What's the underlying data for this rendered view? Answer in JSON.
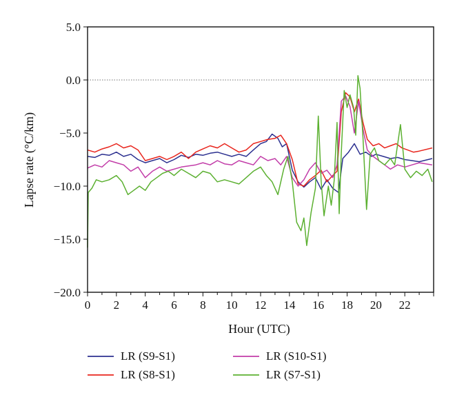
{
  "chart_data": {
    "type": "line",
    "xlabel": "Hour (UTC)",
    "ylabel": "Lapse rate (°C/km)",
    "xlim": [
      0,
      24
    ],
    "ylim": [
      -20,
      5
    ],
    "xticks": [
      0,
      2,
      4,
      6,
      8,
      10,
      12,
      14,
      16,
      18,
      20,
      22
    ],
    "yticks": [
      5,
      0,
      -5,
      -10,
      -15,
      -20
    ],
    "ytick_labels": [
      "5.0",
      "0.0",
      "−5.0",
      "−10.0",
      "−15.0",
      "−20.0"
    ],
    "zero_reference_line": true,
    "grid": false,
    "legend_position": "bottom",
    "series": [
      {
        "name": "LR (S9-S1)",
        "color": "#2b2f8f",
        "points": [
          [
            0,
            -7.2
          ],
          [
            0.5,
            -7.3
          ],
          [
            1,
            -7.0
          ],
          [
            1.5,
            -7.1
          ],
          [
            2,
            -6.8
          ],
          [
            2.5,
            -7.2
          ],
          [
            3,
            -7.0
          ],
          [
            3.5,
            -7.5
          ],
          [
            4,
            -7.8
          ],
          [
            4.5,
            -7.6
          ],
          [
            5,
            -7.4
          ],
          [
            5.5,
            -7.8
          ],
          [
            6,
            -7.5
          ],
          [
            6.5,
            -7.1
          ],
          [
            7,
            -7.3
          ],
          [
            7.5,
            -7.0
          ],
          [
            8,
            -7.1
          ],
          [
            8.5,
            -6.9
          ],
          [
            9,
            -6.8
          ],
          [
            9.5,
            -7.0
          ],
          [
            10,
            -7.2
          ],
          [
            10.5,
            -7.0
          ],
          [
            11,
            -7.2
          ],
          [
            11.5,
            -6.6
          ],
          [
            12,
            -6.0
          ],
          [
            12.4,
            -5.8
          ],
          [
            12.8,
            -5.1
          ],
          [
            13.2,
            -5.5
          ],
          [
            13.5,
            -6.3
          ],
          [
            13.8,
            -6.0
          ],
          [
            14.2,
            -8.5
          ],
          [
            14.6,
            -9.6
          ],
          [
            15,
            -10.1
          ],
          [
            15.4,
            -9.6
          ],
          [
            15.8,
            -9.2
          ],
          [
            16.2,
            -10.3
          ],
          [
            16.6,
            -9.4
          ],
          [
            17,
            -10.2
          ],
          [
            17.4,
            -10.6
          ],
          [
            17.7,
            -7.4
          ],
          [
            18.1,
            -6.8
          ],
          [
            18.5,
            -6.0
          ],
          [
            18.9,
            -7.0
          ],
          [
            19.3,
            -6.8
          ],
          [
            19.7,
            -7.2
          ],
          [
            20,
            -7.0
          ],
          [
            20.5,
            -7.2
          ],
          [
            21,
            -7.4
          ],
          [
            21.5,
            -7.3
          ],
          [
            22,
            -7.5
          ],
          [
            22.5,
            -7.6
          ],
          [
            23,
            -7.7
          ],
          [
            23.9,
            -7.4
          ]
        ]
      },
      {
        "name": "LR (S8-S1)",
        "color": "#e8241c",
        "points": [
          [
            0,
            -6.6
          ],
          [
            0.5,
            -6.8
          ],
          [
            1,
            -6.5
          ],
          [
            1.5,
            -6.3
          ],
          [
            2,
            -6.0
          ],
          [
            2.5,
            -6.4
          ],
          [
            3,
            -6.2
          ],
          [
            3.5,
            -6.6
          ],
          [
            4,
            -7.6
          ],
          [
            4.5,
            -7.4
          ],
          [
            5,
            -7.2
          ],
          [
            5.5,
            -7.5
          ],
          [
            6,
            -7.2
          ],
          [
            6.5,
            -6.8
          ],
          [
            7,
            -7.4
          ],
          [
            7.5,
            -6.8
          ],
          [
            8,
            -6.5
          ],
          [
            8.5,
            -6.2
          ],
          [
            9,
            -6.4
          ],
          [
            9.5,
            -6.0
          ],
          [
            10,
            -6.4
          ],
          [
            10.5,
            -6.8
          ],
          [
            11,
            -6.6
          ],
          [
            11.5,
            -6.0
          ],
          [
            12,
            -5.8
          ],
          [
            12.5,
            -5.6
          ],
          [
            13,
            -5.5
          ],
          [
            13.4,
            -5.2
          ],
          [
            13.8,
            -6.0
          ],
          [
            14.2,
            -7.5
          ],
          [
            14.6,
            -9.8
          ],
          [
            15,
            -10.0
          ],
          [
            15.4,
            -9.4
          ],
          [
            15.8,
            -9.0
          ],
          [
            16.2,
            -8.5
          ],
          [
            16.6,
            -9.6
          ],
          [
            17,
            -9.0
          ],
          [
            17.3,
            -8.6
          ],
          [
            17.6,
            -3.0
          ],
          [
            17.9,
            -1.2
          ],
          [
            18.2,
            -1.6
          ],
          [
            18.5,
            -3.0
          ],
          [
            18.8,
            -1.8
          ],
          [
            19.1,
            -4.0
          ],
          [
            19.4,
            -5.6
          ],
          [
            19.8,
            -6.2
          ],
          [
            20.2,
            -6.0
          ],
          [
            20.6,
            -6.4
          ],
          [
            21,
            -6.2
          ],
          [
            21.4,
            -6.0
          ],
          [
            21.8,
            -6.4
          ],
          [
            22.2,
            -6.6
          ],
          [
            22.6,
            -6.8
          ],
          [
            23,
            -6.7
          ],
          [
            23.9,
            -6.4
          ]
        ]
      },
      {
        "name": "LR (S10-S1)",
        "color": "#c23ca8",
        "points": [
          [
            0,
            -8.3
          ],
          [
            0.5,
            -8.0
          ],
          [
            1,
            -8.2
          ],
          [
            1.5,
            -7.6
          ],
          [
            2,
            -7.8
          ],
          [
            2.5,
            -8.0
          ],
          [
            3,
            -8.6
          ],
          [
            3.5,
            -8.2
          ],
          [
            4,
            -9.2
          ],
          [
            4.5,
            -8.6
          ],
          [
            5,
            -8.2
          ],
          [
            5.5,
            -8.6
          ],
          [
            6,
            -8.4
          ],
          [
            6.5,
            -8.2
          ],
          [
            7,
            -8.1
          ],
          [
            7.5,
            -8.0
          ],
          [
            8,
            -7.8
          ],
          [
            8.5,
            -8.0
          ],
          [
            9,
            -7.6
          ],
          [
            9.5,
            -7.9
          ],
          [
            10,
            -8.0
          ],
          [
            10.5,
            -7.6
          ],
          [
            11,
            -7.8
          ],
          [
            11.5,
            -8.0
          ],
          [
            12,
            -7.2
          ],
          [
            12.5,
            -7.6
          ],
          [
            13,
            -7.4
          ],
          [
            13.4,
            -8.0
          ],
          [
            13.8,
            -7.2
          ],
          [
            14.2,
            -9.2
          ],
          [
            14.6,
            -10.0
          ],
          [
            15,
            -9.4
          ],
          [
            15.4,
            -8.4
          ],
          [
            15.8,
            -7.8
          ],
          [
            16.2,
            -8.8
          ],
          [
            16.6,
            -8.5
          ],
          [
            17,
            -9.2
          ],
          [
            17.3,
            -8.0
          ],
          [
            17.6,
            -2.0
          ],
          [
            17.9,
            -1.5
          ],
          [
            18.2,
            -2.5
          ],
          [
            18.5,
            -5.0
          ],
          [
            18.8,
            -2.0
          ],
          [
            19.1,
            -4.6
          ],
          [
            19.4,
            -6.6
          ],
          [
            19.8,
            -7.2
          ],
          [
            20.2,
            -7.6
          ],
          [
            20.6,
            -8.0
          ],
          [
            21,
            -8.4
          ],
          [
            21.5,
            -8.0
          ],
          [
            22,
            -8.2
          ],
          [
            22.5,
            -8.0
          ],
          [
            23,
            -7.8
          ],
          [
            23.9,
            -8.0
          ]
        ]
      },
      {
        "name": "LR (S7-S1)",
        "color": "#5bb030",
        "points": [
          [
            0,
            -15.8
          ],
          [
            0.05,
            -10.6
          ],
          [
            0.3,
            -10.2
          ],
          [
            0.6,
            -9.4
          ],
          [
            1,
            -9.6
          ],
          [
            1.5,
            -9.4
          ],
          [
            2,
            -9.0
          ],
          [
            2.4,
            -9.6
          ],
          [
            2.8,
            -10.8
          ],
          [
            3.2,
            -10.4
          ],
          [
            3.6,
            -10.0
          ],
          [
            4,
            -10.4
          ],
          [
            4.4,
            -9.6
          ],
          [
            4.8,
            -9.2
          ],
          [
            5.2,
            -8.8
          ],
          [
            5.6,
            -8.6
          ],
          [
            6,
            -9.0
          ],
          [
            6.5,
            -8.4
          ],
          [
            7,
            -8.8
          ],
          [
            7.5,
            -9.2
          ],
          [
            8,
            -8.6
          ],
          [
            8.5,
            -8.8
          ],
          [
            9,
            -9.6
          ],
          [
            9.5,
            -9.4
          ],
          [
            10,
            -9.6
          ],
          [
            10.5,
            -9.8
          ],
          [
            11,
            -9.2
          ],
          [
            11.5,
            -8.6
          ],
          [
            12,
            -8.2
          ],
          [
            12.4,
            -9.0
          ],
          [
            12.8,
            -9.6
          ],
          [
            13.2,
            -10.8
          ],
          [
            13.6,
            -8.4
          ],
          [
            13.9,
            -7.2
          ],
          [
            14.2,
            -9.6
          ],
          [
            14.5,
            -13.4
          ],
          [
            14.8,
            -14.2
          ],
          [
            15,
            -13.0
          ],
          [
            15.2,
            -15.6
          ],
          [
            15.5,
            -12.5
          ],
          [
            15.8,
            -10.2
          ],
          [
            16.0,
            -3.4
          ],
          [
            16.2,
            -9.5
          ],
          [
            16.4,
            -12.8
          ],
          [
            16.7,
            -10.0
          ],
          [
            16.9,
            -11.8
          ],
          [
            17.1,
            -9.5
          ],
          [
            17.3,
            -4.0
          ],
          [
            17.45,
            -12.6
          ],
          [
            17.6,
            -6.8
          ],
          [
            17.8,
            -1.0
          ],
          [
            18.0,
            -2.6
          ],
          [
            18.2,
            -1.4
          ],
          [
            18.45,
            -2.6
          ],
          [
            18.6,
            -5.2
          ],
          [
            18.75,
            0.4
          ],
          [
            18.9,
            -0.8
          ],
          [
            19.1,
            -5.4
          ],
          [
            19.35,
            -12.2
          ],
          [
            19.6,
            -7.0
          ],
          [
            19.9,
            -6.4
          ],
          [
            20.2,
            -7.6
          ],
          [
            20.6,
            -8.0
          ],
          [
            21.0,
            -7.4
          ],
          [
            21.3,
            -8.0
          ],
          [
            21.7,
            -4.2
          ],
          [
            22.0,
            -8.4
          ],
          [
            22.4,
            -9.2
          ],
          [
            22.8,
            -8.6
          ],
          [
            23.2,
            -9.0
          ],
          [
            23.6,
            -8.4
          ],
          [
            23.9,
            -9.6
          ]
        ]
      }
    ]
  }
}
